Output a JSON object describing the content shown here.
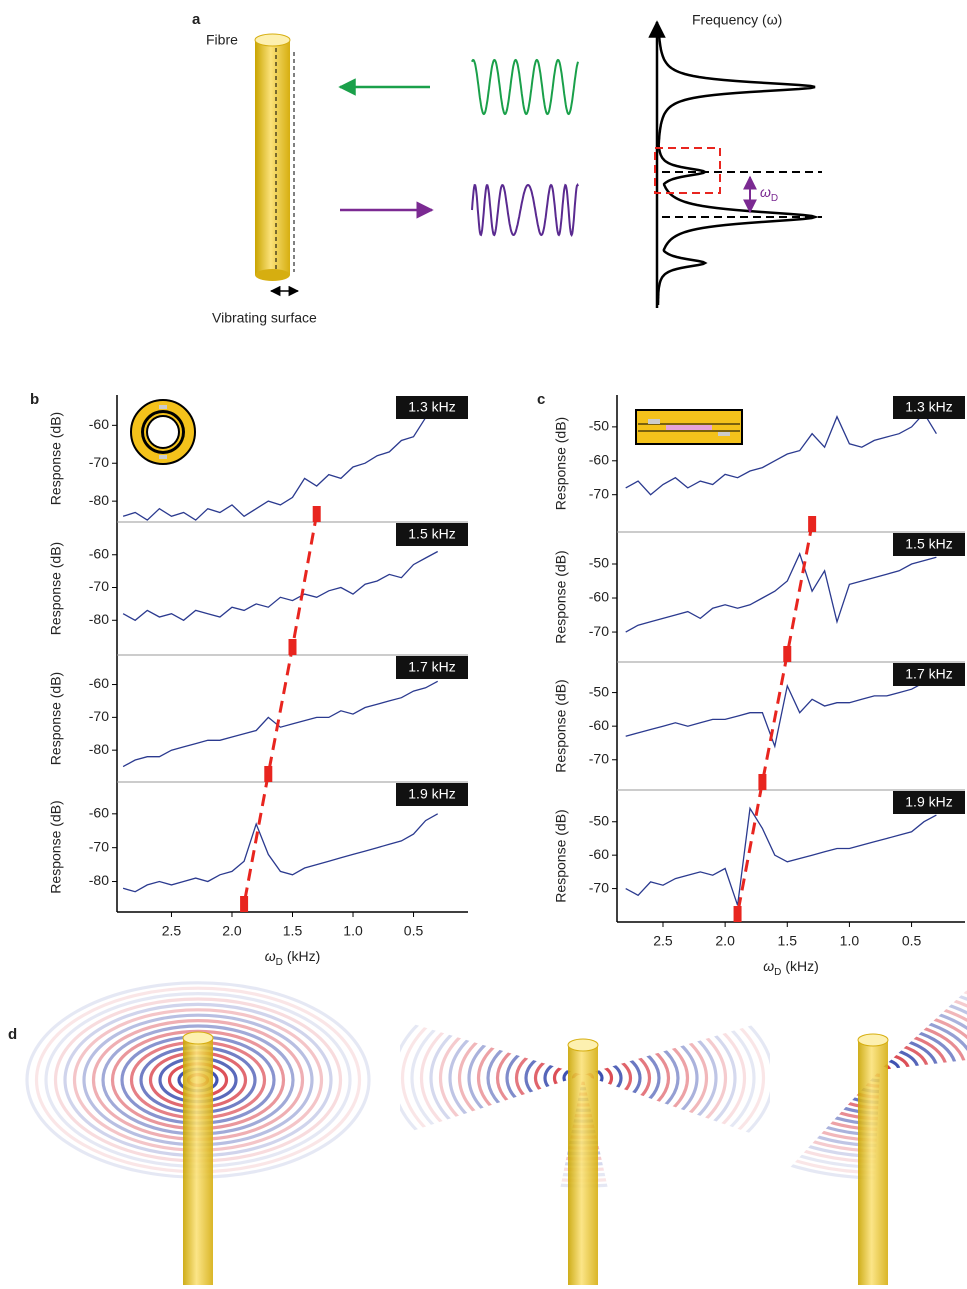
{
  "panel_a": {
    "label": "a",
    "fibre": "Fibre",
    "surface": "Vibrating surface",
    "axis": "Frequency (ω)",
    "omega_symbol": "ω",
    "omega_subscript": "D"
  },
  "chart_data": [
    {
      "type": "line",
      "label": "b",
      "y_label": "Response (dB)",
      "x_symbol": "ω",
      "x_subscript": "D",
      "x_unit": "(kHz)",
      "xlim": [
        2.95,
        0.05
      ],
      "xticks": [
        2.5,
        {
          "value": 2,
          "label": "2.0"
        },
        1.5,
        {
          "value": 1,
          "label": "1.0"
        },
        0.5
      ],
      "color": "#2b3a8f",
      "marker_color": "#e8251f",
      "x": [
        2.9,
        2.8,
        2.7,
        2.6,
        2.5,
        2.4,
        2.3,
        2.2,
        2.1,
        2.0,
        1.9,
        1.8,
        1.7,
        1.6,
        1.5,
        1.4,
        1.3,
        1.2,
        1.1,
        1.0,
        0.9,
        0.8,
        0.7,
        0.6,
        0.5,
        0.4,
        0.3
      ],
      "subplots": [
        {
          "tag": "1.3 kHz",
          "marker": 1.3,
          "ylim": [
            -85.5,
            -52
          ],
          "yticks": [
            -60,
            -70,
            -80
          ],
          "values": [
            -84,
            -83,
            -85,
            -82,
            -84,
            -83,
            -85,
            -82,
            -83,
            -81,
            -84,
            -82,
            -80,
            -81,
            -79,
            -74,
            -76,
            -73,
            -74,
            -71,
            -70,
            -68,
            -67,
            -64,
            -63,
            -58,
            -56
          ]
        },
        {
          "tag": "1.5 kHz",
          "marker": 1.5,
          "ylim": [
            -90.6,
            -50
          ],
          "yticks": [
            -60,
            -70,
            -80
          ],
          "values": [
            -78,
            -80,
            -77,
            -79,
            -78,
            -80,
            -77,
            -78,
            -79,
            -76,
            -77,
            -75,
            -76,
            -73,
            -74,
            -72,
            -73,
            -71,
            -70,
            -72,
            -69,
            -68,
            -66,
            -67,
            -63,
            -61,
            -59
          ]
        },
        {
          "tag": "1.7 kHz",
          "marker": 1.7,
          "ylim": [
            -89.7,
            -51
          ],
          "yticks": [
            -60,
            -70,
            -80
          ],
          "values": [
            -85,
            -83,
            -82,
            -82,
            -80,
            -79,
            -78,
            -77,
            -77,
            -76,
            -75,
            -74,
            -70,
            -73,
            -72,
            -71,
            -70,
            -70,
            -68,
            -69,
            -67,
            -66,
            -65,
            -64,
            -62,
            -61,
            -59
          ]
        },
        {
          "tag": "1.9 kHz",
          "marker": 1.9,
          "ylim": [
            -89,
            -50.6
          ],
          "yticks": [
            -60,
            -70,
            -80
          ],
          "values": [
            -82,
            -83,
            -81,
            -80,
            -81,
            -80,
            -79,
            -80,
            -78,
            -77,
            -74,
            -63,
            -72,
            -77,
            -78,
            -76,
            -75,
            -74,
            -73,
            -72,
            -71,
            -70,
            -69,
            -68,
            -66,
            -62,
            -60
          ]
        }
      ]
    },
    {
      "type": "line",
      "label": "c",
      "y_label": "Response (dB)",
      "x_symbol": "ω",
      "x_subscript": "D",
      "x_unit": "(kHz)",
      "xlim": [
        2.87,
        0.07
      ],
      "xticks": [
        2.5,
        {
          "value": 2,
          "label": "2.0"
        },
        1.5,
        {
          "value": 1,
          "label": "1.0"
        },
        0.5
      ],
      "color": "#2b3a8f",
      "marker_color": "#e8251f",
      "x": [
        2.8,
        2.7,
        2.6,
        2.5,
        2.4,
        2.3,
        2.2,
        2.1,
        2.0,
        1.9,
        1.8,
        1.7,
        1.6,
        1.5,
        1.4,
        1.3,
        1.2,
        1.1,
        1.0,
        0.9,
        0.8,
        0.7,
        0.6,
        0.5,
        0.4,
        0.3
      ],
      "subplots": [
        {
          "tag": "1.3 kHz",
          "marker": 1.3,
          "ylim": [
            -81,
            -40.6
          ],
          "yticks": [
            -50,
            -60,
            -70
          ],
          "values": [
            -68,
            -66,
            -70,
            -67,
            -65,
            -68,
            -66,
            -67,
            -64,
            -65,
            -63,
            -62,
            -60,
            -58,
            -57,
            -52,
            -56,
            -47,
            -55,
            -56,
            -54,
            -53,
            -52,
            -50,
            -46,
            -52
          ]
        },
        {
          "tag": "1.5 kHz",
          "marker": 1.5,
          "ylim": [
            -78.8,
            -40.6
          ],
          "yticks": [
            -50,
            -60,
            -70
          ],
          "values": [
            -70,
            -68,
            -67,
            -66,
            -65,
            -64,
            -66,
            -63,
            -62,
            -63,
            -62,
            -60,
            -58,
            -55,
            -47,
            -58,
            -52,
            -67,
            -56,
            -55,
            -54,
            -53,
            -52,
            -50,
            -49,
            -48
          ]
        },
        {
          "tag": "1.7 kHz",
          "marker": 1.7,
          "ylim": [
            -79,
            -40.9
          ],
          "yticks": [
            -50,
            -60,
            -70
          ],
          "values": [
            -63,
            -62,
            -61,
            -60,
            -59,
            -60,
            -59,
            -58,
            -58,
            -57,
            -56,
            -56,
            -66,
            -48,
            -56,
            -52,
            -54,
            -53,
            -53,
            -52,
            -51,
            -51,
            -50,
            -49,
            -47,
            -46
          ]
        },
        {
          "tag": "1.9 kHz",
          "marker": 1.9,
          "ylim": [
            -80,
            -40.5
          ],
          "yticks": [
            -50,
            -60,
            -70
          ],
          "values": [
            -70,
            -72,
            -68,
            -69,
            -67,
            -66,
            -65,
            -66,
            -64,
            -75,
            -46,
            -52,
            -60,
            -62,
            -61,
            -60,
            -59,
            -58,
            -58,
            -57,
            -56,
            -55,
            -54,
            -53,
            -50,
            -48
          ]
        }
      ]
    }
  ],
  "panel_d": {
    "label": "d"
  }
}
